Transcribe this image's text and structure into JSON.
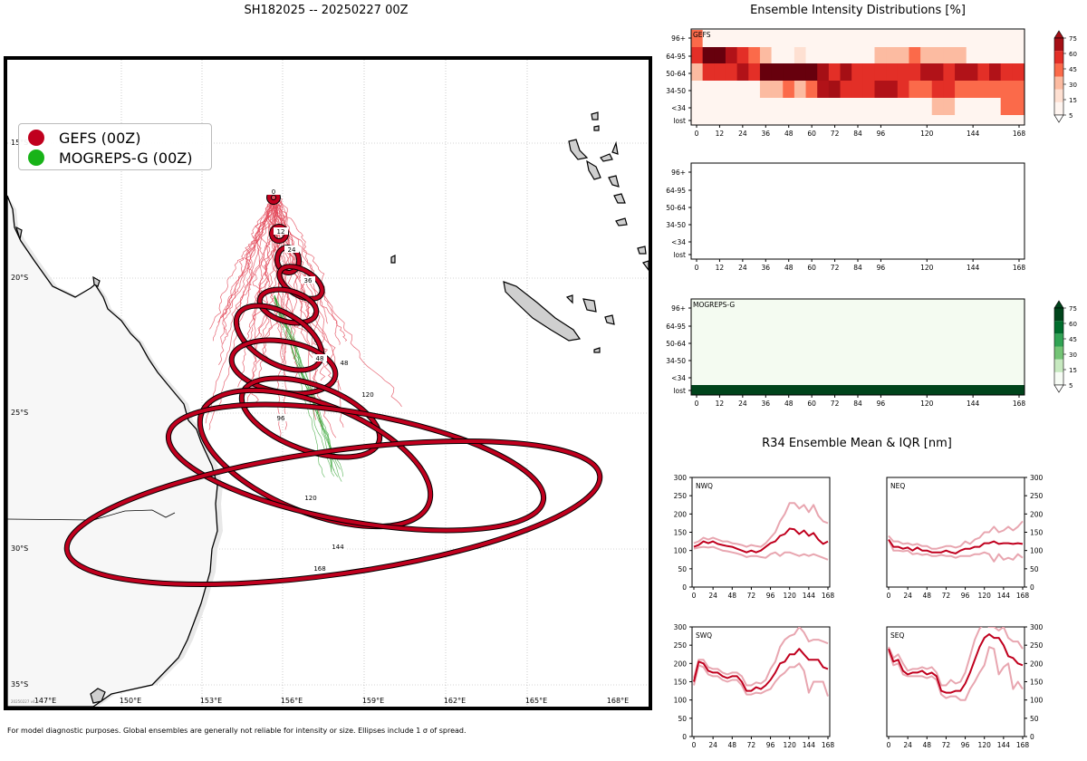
{
  "main_title": "SH182025 -- 20250227 00Z",
  "footnote": "For model diagnostic purposes. Global ensembles are generally not reliable for intensity or size. Ellipses include 1 σ of spread.",
  "watermark": "20250227 v4.0",
  "colors": {
    "gefs": "#c0001e",
    "mogreps": "#18b318",
    "gefs_thin": "#e34a5a",
    "mogreps_thin": "#2ca02c"
  },
  "legend": [
    {
      "label": "GEFS (00Z)",
      "color": "#c0001e"
    },
    {
      "label": "MOGREPS-G (00Z)",
      "color": "#18b318"
    }
  ],
  "map": {
    "lon_ticks": [
      "147°E",
      "150°E",
      "153°E",
      "156°E",
      "159°E",
      "162°E",
      "165°E",
      "168°E"
    ],
    "lat_ticks": [
      "15°S",
      "20°S",
      "25°S",
      "30°S",
      "35°S"
    ],
    "ellipse_labels": [
      "0",
      "12",
      "24",
      "36",
      "48",
      "72",
      "96",
      "120",
      "144",
      "168"
    ]
  },
  "intensity": {
    "title": "Ensemble Intensity Distributions [%]",
    "y_categories": [
      "96+",
      "64-95",
      "50-64",
      "34-50",
      "<34",
      "lost"
    ],
    "x_ticks": [
      "0",
      "12",
      "24",
      "36",
      "48",
      "60",
      "72",
      "84",
      "96",
      "120",
      "144",
      "168"
    ],
    "gefs_label": "GEFS",
    "mogreps_label": "MOGREPS-G",
    "colorbar_ticks": [
      "75",
      "60",
      "45",
      "30",
      "15",
      "5"
    ]
  },
  "chart_data": [
    {
      "type": "heatmap",
      "title": "GEFS",
      "x": [
        0,
        6,
        12,
        18,
        24,
        30,
        36,
        42,
        48,
        54,
        60,
        66,
        72,
        78,
        84,
        90,
        96,
        102,
        108,
        114,
        120,
        126,
        132,
        138,
        144,
        150,
        156,
        162,
        168
      ],
      "y_categories": [
        "96+",
        "64-95",
        "50-64",
        "34-50",
        "<34",
        "lost"
      ],
      "values": [
        [
          20,
          0,
          0,
          0,
          0,
          0,
          0,
          0,
          0,
          0,
          0,
          0,
          0,
          0,
          0,
          0,
          0,
          0,
          0,
          0,
          0,
          0,
          0,
          0,
          0,
          0,
          0,
          0,
          0
        ],
        [
          40,
          70,
          70,
          55,
          40,
          25,
          10,
          0,
          0,
          5,
          0,
          0,
          0,
          0,
          0,
          0,
          10,
          10,
          10,
          25,
          10,
          10,
          10,
          10,
          0,
          0,
          0,
          0,
          0
        ],
        [
          10,
          40,
          40,
          40,
          55,
          45,
          80,
          80,
          80,
          80,
          80,
          65,
          40,
          65,
          45,
          45,
          35,
          45,
          45,
          45,
          55,
          50,
          35,
          50,
          50,
          40,
          55,
          40,
          40
        ],
        [
          0,
          0,
          0,
          0,
          0,
          0,
          10,
          10,
          20,
          10,
          30,
          55,
          65,
          45,
          40,
          40,
          50,
          50,
          40,
          30,
          30,
          35,
          45,
          30,
          30,
          30,
          30,
          30,
          30
        ],
        [
          0,
          0,
          0,
          0,
          0,
          0,
          0,
          0,
          0,
          0,
          0,
          0,
          0,
          0,
          0,
          0,
          0,
          0,
          0,
          0,
          0,
          10,
          10,
          0,
          0,
          0,
          0,
          20,
          20
        ],
        [
          0,
          0,
          0,
          0,
          0,
          0,
          0,
          0,
          0,
          0,
          0,
          0,
          0,
          0,
          0,
          0,
          0,
          0,
          0,
          0,
          0,
          0,
          0,
          0,
          0,
          0,
          0,
          0,
          0
        ]
      ],
      "colorbar": [
        5,
        15,
        30,
        45,
        60,
        75
      ]
    },
    {
      "type": "heatmap",
      "title": "MOGREPS-G",
      "x": [
        0,
        168
      ],
      "y_categories": [
        "96+",
        "64-95",
        "50-64",
        "34-50",
        "<34",
        "lost"
      ],
      "values": [
        [
          0
        ],
        [
          0
        ],
        [
          0
        ],
        [
          0
        ],
        [
          0
        ],
        [
          100
        ]
      ],
      "colorbar": [
        5,
        15,
        30,
        45,
        60,
        75
      ]
    },
    {
      "type": "line",
      "title": "R34 Ensemble Mean & IQR [nm]",
      "x": [
        0,
        6,
        12,
        18,
        24,
        30,
        36,
        42,
        48,
        54,
        60,
        66,
        72,
        78,
        84,
        90,
        96,
        102,
        108,
        114,
        120,
        126,
        132,
        138,
        144,
        150,
        156,
        162,
        168
      ],
      "ylim": [
        0,
        300
      ],
      "y_ticks": [
        "0",
        "50",
        "100",
        "150",
        "200",
        "250",
        "300"
      ],
      "x_ticks": [
        "0",
        "24",
        "48",
        "72",
        "96",
        "120",
        "144",
        "168"
      ],
      "panels": [
        {
          "name": "NWQ",
          "mean": [
            110,
            115,
            125,
            120,
            125,
            118,
            115,
            112,
            110,
            105,
            100,
            95,
            100,
            95,
            100,
            110,
            120,
            125,
            140,
            145,
            160,
            158,
            145,
            155,
            140,
            148,
            130,
            118,
            125
          ],
          "q25": [
            105,
            108,
            110,
            108,
            110,
            105,
            100,
            98,
            95,
            92,
            88,
            82,
            85,
            85,
            82,
            80,
            90,
            95,
            85,
            95,
            95,
            90,
            85,
            90,
            85,
            90,
            85,
            80,
            75
          ],
          "q75": [
            120,
            125,
            135,
            130,
            135,
            130,
            125,
            125,
            120,
            118,
            115,
            110,
            115,
            112,
            110,
            120,
            135,
            150,
            180,
            200,
            230,
            230,
            215,
            225,
            205,
            225,
            195,
            180,
            175
          ]
        },
        {
          "name": "NEQ",
          "mean": [
            130,
            110,
            110,
            105,
            108,
            100,
            108,
            100,
            100,
            95,
            95,
            95,
            100,
            95,
            92,
            100,
            105,
            105,
            110,
            110,
            120,
            120,
            125,
            118,
            120,
            120,
            118,
            120,
            118
          ],
          "q25": [
            130,
            100,
            100,
            98,
            100,
            90,
            92,
            88,
            90,
            85,
            85,
            88,
            85,
            85,
            80,
            85,
            85,
            85,
            90,
            90,
            95,
            90,
            70,
            90,
            75,
            80,
            75,
            90,
            80
          ],
          "q75": [
            140,
            125,
            125,
            118,
            120,
            115,
            118,
            112,
            112,
            105,
            105,
            108,
            112,
            112,
            108,
            112,
            125,
            118,
            130,
            135,
            150,
            150,
            165,
            150,
            155,
            165,
            155,
            165,
            180
          ]
        },
        {
          "name": "SWQ",
          "mean": [
            150,
            205,
            200,
            180,
            175,
            175,
            165,
            160,
            165,
            165,
            150,
            125,
            125,
            135,
            130,
            140,
            155,
            175,
            200,
            205,
            225,
            225,
            240,
            225,
            210,
            210,
            210,
            190,
            185
          ],
          "q25": [
            140,
            195,
            190,
            170,
            165,
            165,
            155,
            150,
            155,
            155,
            140,
            115,
            115,
            120,
            118,
            125,
            130,
            150,
            165,
            175,
            190,
            190,
            200,
            180,
            120,
            150,
            150,
            150,
            110
          ],
          "q75": [
            160,
            210,
            210,
            190,
            185,
            185,
            175,
            170,
            175,
            175,
            165,
            140,
            140,
            148,
            145,
            155,
            185,
            205,
            245,
            265,
            275,
            280,
            300,
            285,
            260,
            265,
            265,
            260,
            255
          ]
        },
        {
          "name": "SEQ",
          "mean": [
            240,
            205,
            210,
            180,
            170,
            175,
            175,
            180,
            170,
            175,
            165,
            125,
            120,
            120,
            125,
            125,
            145,
            175,
            210,
            245,
            270,
            280,
            270,
            270,
            250,
            220,
            215,
            200,
            195
          ],
          "q25": [
            235,
            195,
            200,
            170,
            165,
            165,
            165,
            165,
            160,
            165,
            155,
            115,
            105,
            110,
            110,
            100,
            100,
            130,
            150,
            175,
            195,
            245,
            240,
            170,
            190,
            200,
            130,
            150,
            130
          ],
          "q75": [
            245,
            215,
            225,
            200,
            180,
            185,
            185,
            190,
            185,
            190,
            175,
            140,
            140,
            155,
            145,
            150,
            175,
            220,
            265,
            295,
            310,
            300,
            300,
            290,
            300,
            270,
            260,
            260,
            240
          ]
        }
      ]
    }
  ]
}
